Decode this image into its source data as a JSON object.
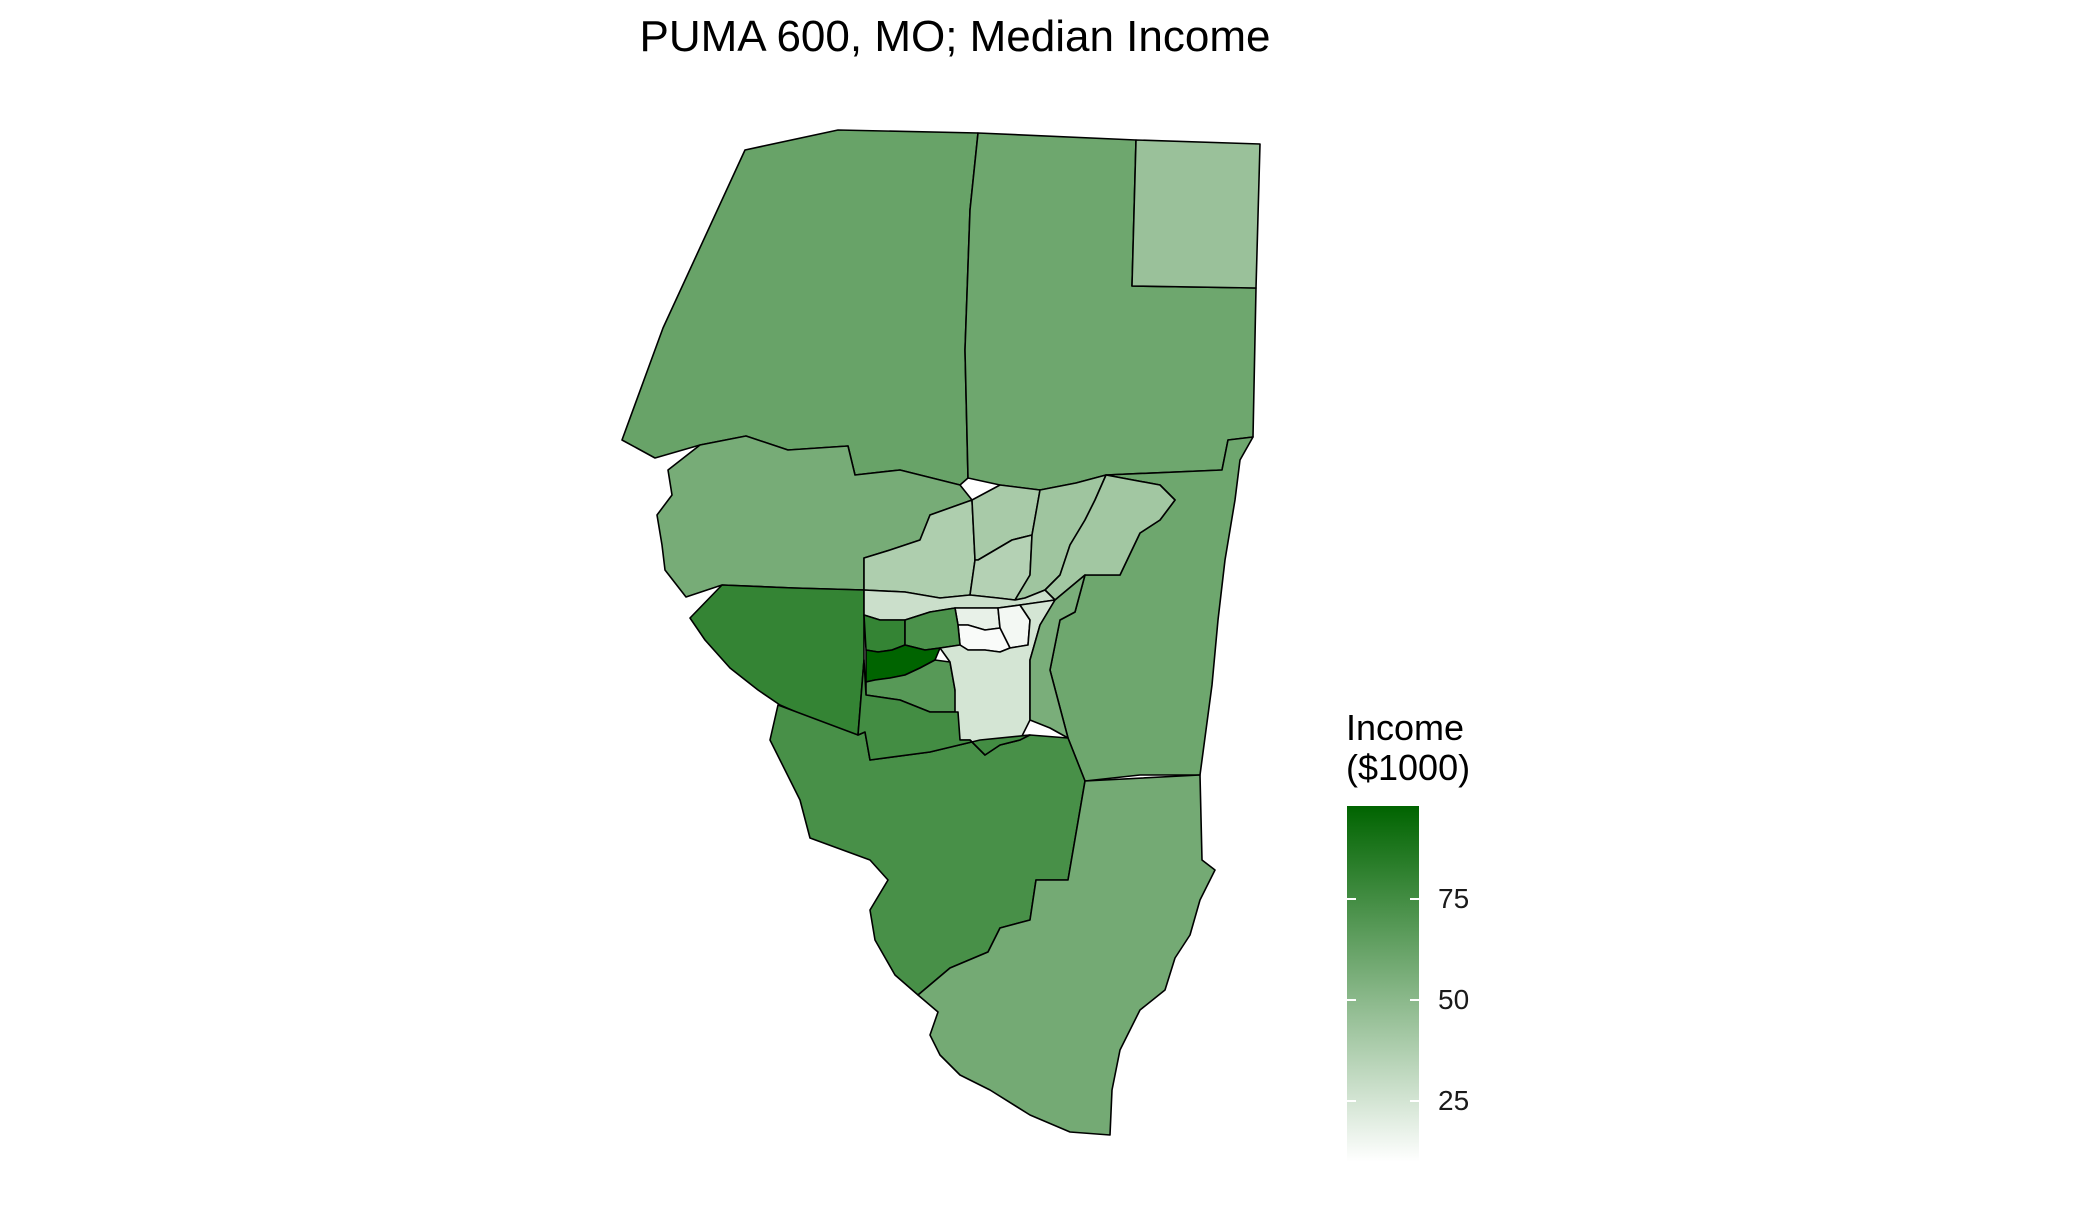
{
  "title": "PUMA 600, MO; Median Income",
  "legend": {
    "title_line1": "Income",
    "title_line2": "($1000)",
    "min": 10,
    "max": 98,
    "low_color": "#ffffff",
    "high_color": "#006400",
    "ticks": [
      {
        "value": 75,
        "label": "75"
      },
      {
        "value": 50,
        "label": "50"
      },
      {
        "value": 25,
        "label": "25"
      }
    ]
  },
  "regions": [
    {
      "id": "nw-tract",
      "income": 62
    },
    {
      "id": "n-central-tract",
      "income": 60
    },
    {
      "id": "ne-corner-tract",
      "income": 45
    },
    {
      "id": "w-middle-tract",
      "income": 57
    },
    {
      "id": "e-middle-tract",
      "income": 60
    },
    {
      "id": "sw-river-tract",
      "income": 80
    },
    {
      "id": "s-central-tract",
      "income": 73
    },
    {
      "id": "se-tract",
      "income": 58
    },
    {
      "id": "urban-nw-tract",
      "income": 38
    },
    {
      "id": "urban-n-tract",
      "income": 40
    },
    {
      "id": "urban-nn-tract",
      "income": 36
    },
    {
      "id": "urban-ne-tract",
      "income": 43
    },
    {
      "id": "urban-ne2-tract",
      "income": 42
    },
    {
      "id": "urban-w-tract",
      "income": 28
    },
    {
      "id": "urban-core1-tract",
      "income": 18
    },
    {
      "id": "urban-core2-tract",
      "income": 14
    },
    {
      "id": "urban-core3-tract",
      "income": 12
    },
    {
      "id": "urban-sw1-tract",
      "income": 80
    },
    {
      "id": "urban-sw2-tract",
      "income": 72
    },
    {
      "id": "urban-sw3-tract",
      "income": 98
    },
    {
      "id": "urban-sw4-tract",
      "income": 68
    },
    {
      "id": "urban-s-tract",
      "income": 25
    },
    {
      "id": "urban-se-tract",
      "income": 56
    },
    {
      "id": "urban-ssw-tract",
      "income": 75
    }
  ]
}
